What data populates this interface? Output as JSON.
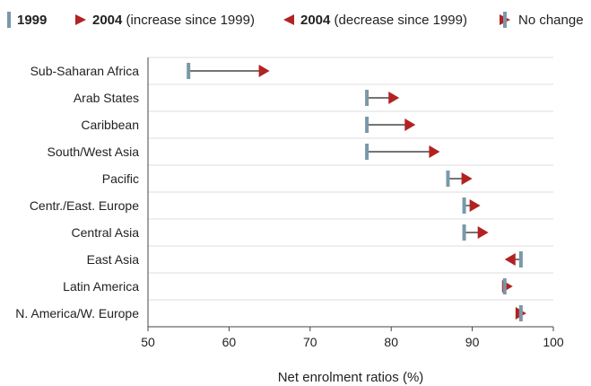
{
  "legend": {
    "y1999": "1999",
    "y2004": "2004",
    "increase_text": "(increase since 1999)",
    "decrease_text": "(decrease since 1999)",
    "nochange_text": "No change"
  },
  "colors": {
    "marker_1999": "#7a98a8",
    "increase": "#b22222",
    "decrease": "#b22222",
    "line": "#222222",
    "grid": "#dddddd"
  },
  "chart_data": {
    "type": "dumbbell",
    "xlabel": "Net enrolment ratios (%)",
    "xlim": [
      50,
      100
    ],
    "xticks": [
      50,
      60,
      70,
      80,
      90,
      100
    ],
    "grid": "horizontal separators",
    "legend_position": "top",
    "series": [
      {
        "name": "1999",
        "values": [
          55,
          77,
          77,
          77,
          87,
          89,
          89,
          96,
          94,
          96
        ]
      },
      {
        "name": "2004",
        "values": [
          65,
          81,
          83,
          86,
          90,
          91,
          92,
          94,
          95,
          96
        ]
      }
    ],
    "categories": [
      "Sub-Saharan Africa",
      "Arab States",
      "Caribbean",
      "South/West Asia",
      "Pacific",
      "Centr./East. Europe",
      "Central Asia",
      "East Asia",
      "Latin America",
      "N. America/W. Europe"
    ]
  }
}
